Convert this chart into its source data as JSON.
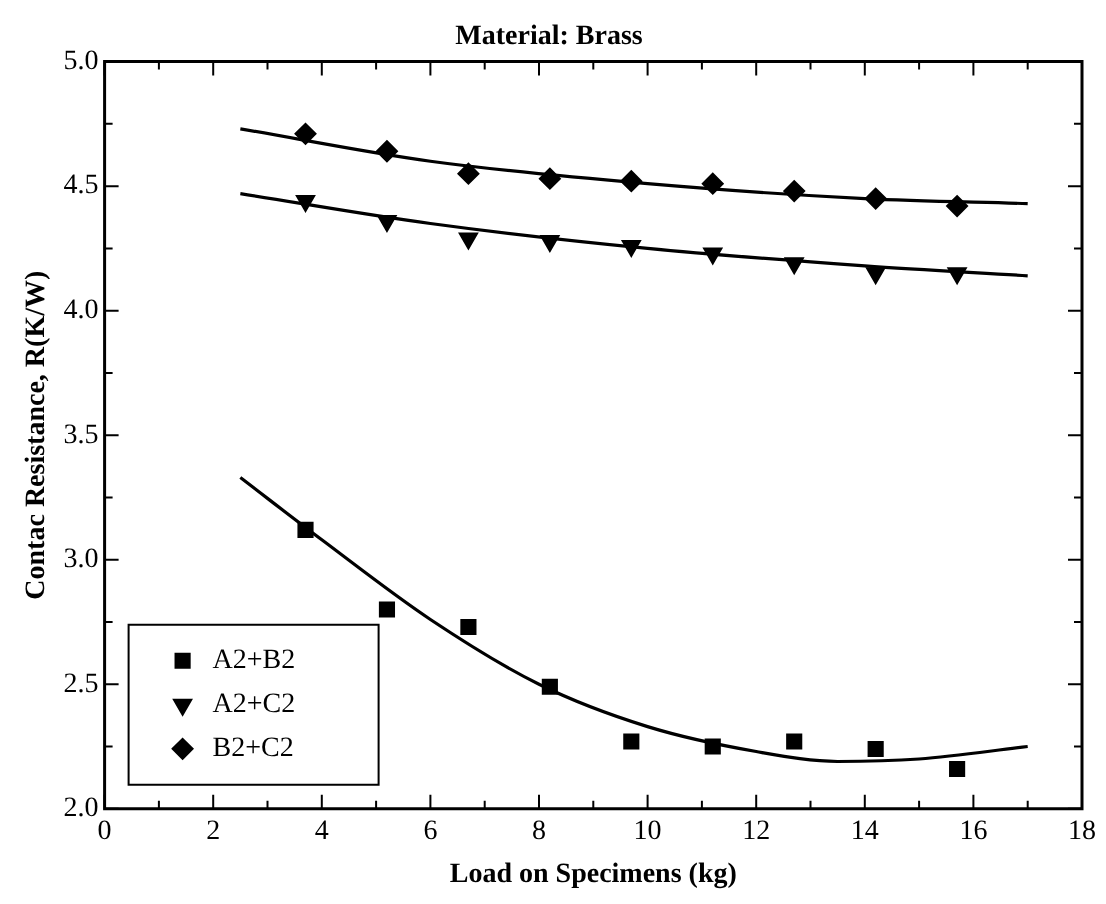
{
  "chart_data": {
    "type": "scatter",
    "title": "Material: Brass",
    "xlabel": "Load on Specimens (kg)",
    "ylabel": "Contac Resistance, R(K/W)",
    "x": [
      3.7,
      5.2,
      6.7,
      8.2,
      9.7,
      11.2,
      12.7,
      14.2,
      15.7
    ],
    "series": [
      {
        "name": "A2+B2",
        "color": "#000000",
        "marker": "square",
        "values": [
          3.12,
          2.8,
          2.73,
          2.49,
          2.27,
          2.25,
          2.27,
          2.24,
          2.16
        ]
      },
      {
        "name": "A2+C2",
        "color": "#000000",
        "marker": "triangle",
        "values": [
          4.44,
          4.36,
          4.29,
          4.28,
          4.26,
          4.23,
          4.19,
          4.15,
          4.15
        ]
      },
      {
        "name": "B2+C2",
        "color": "#000000",
        "marker": "diamond",
        "values": [
          4.71,
          4.64,
          4.55,
          4.53,
          4.52,
          4.51,
          4.48,
          4.45,
          4.42
        ]
      },
      {
        "type": "line",
        "color": "#000000",
        "marker": "none",
        "x": [
          2.5,
          4,
          6,
          8,
          10,
          12,
          13.5,
          15,
          17
        ],
        "values": [
          3.33,
          3.08,
          2.76,
          2.5,
          2.33,
          2.23,
          2.19,
          2.2,
          2.25
        ]
      },
      {
        "type": "line",
        "color": "#000000",
        "marker": "none",
        "x": [
          2.5,
          6,
          10,
          14,
          17
        ],
        "values": [
          4.47,
          4.35,
          4.25,
          4.18,
          4.14
        ]
      },
      {
        "type": "line",
        "color": "#000000",
        "marker": "none",
        "x": [
          2.5,
          6,
          10,
          14,
          17
        ],
        "values": [
          4.73,
          4.6,
          4.51,
          4.45,
          4.43
        ]
      }
    ],
    "xlim": [
      0,
      18
    ],
    "xticks": [
      0,
      2,
      4,
      6,
      8,
      10,
      12,
      14,
      16,
      18
    ],
    "ylim": [
      2,
      5
    ],
    "yticks": [
      {
        "value": 2,
        "label": "2.0"
      },
      {
        "value": 2.5,
        "label": "2.5"
      },
      {
        "value": 3,
        "label": "3.0"
      },
      {
        "value": 3.5,
        "label": "3.5"
      },
      {
        "value": 4,
        "label": "4.0"
      },
      {
        "value": 4.5,
        "label": "4.5"
      },
      {
        "value": 5,
        "label": "5.0"
      }
    ],
    "grid": false,
    "legend": "bottom left"
  }
}
